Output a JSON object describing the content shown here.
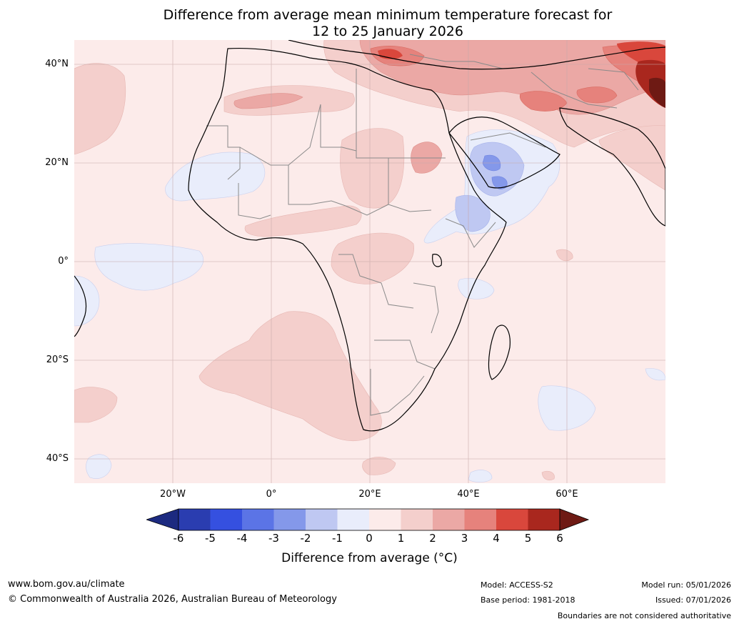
{
  "title": {
    "line1": "Difference from average mean minimum temperature forecast for",
    "line2": "12 to 25 January 2026"
  },
  "map": {
    "lat_labels": [
      "40°N",
      "20°N",
      "0°",
      "20°S",
      "40°S"
    ],
    "lon_labels": [
      "20°W",
      "0°",
      "20°E",
      "40°E",
      "60°E"
    ]
  },
  "legend": {
    "ticks": [
      "-6",
      "-5",
      "-4",
      "-3",
      "-2",
      "-1",
      "0",
      "1",
      "2",
      "3",
      "4",
      "5",
      "6"
    ],
    "colors": [
      "#1c2a80",
      "#2a3db0",
      "#3550e0",
      "#5b74e6",
      "#8498ea",
      "#bfc8f2",
      "#e9edfb",
      "#fcebea",
      "#f4cfcc",
      "#eba8a5",
      "#e6827c",
      "#d9473c",
      "#a9271e",
      "#6e1a14"
    ],
    "label": "Difference from average (°C)"
  },
  "footer": {
    "website": "www.bom.gov.au/climate",
    "copyright": "© Commonwealth of Australia 2026, Australian Bureau of Meteorology",
    "model": "Model: ACCESS-S2",
    "base_period": "Base period: 1981-2018",
    "model_run": "Model run: 05/01/2026",
    "issued": "Issued: 07/01/2026",
    "disclaimer": "Boundaries are not considered authoritative"
  }
}
